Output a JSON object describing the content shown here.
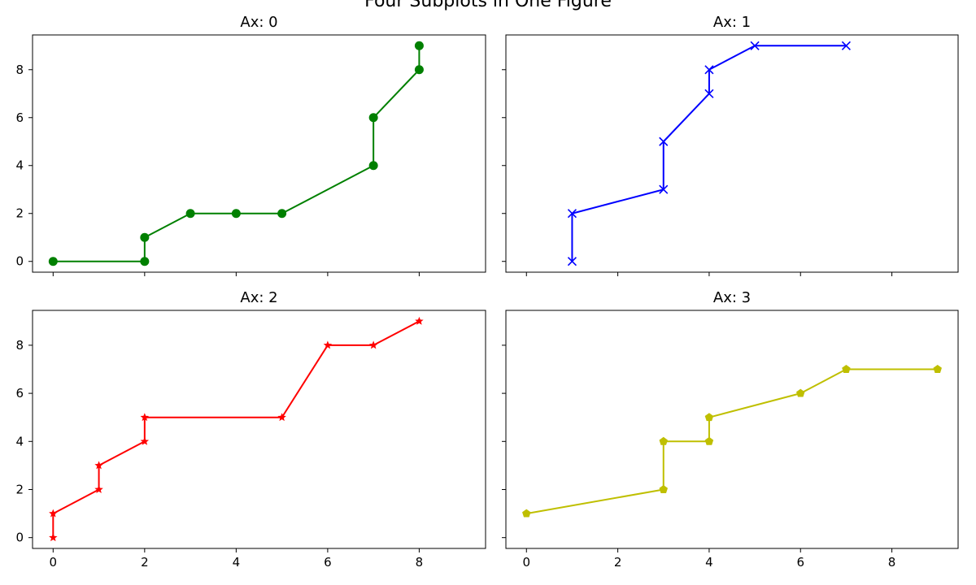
{
  "figure": {
    "suptitle": "Four Subplots in One Figure"
  },
  "chart_data": [
    {
      "type": "line",
      "title": "Ax: 0",
      "xlabel": "",
      "ylabel": "",
      "color": "#008000",
      "marker": "circle",
      "xlim": [
        -0.45,
        9.45
      ],
      "ylim": [
        -0.45,
        9.45
      ],
      "xticks": [
        0,
        2,
        4,
        6,
        8
      ],
      "yticks": [
        0,
        2,
        4,
        6,
        8
      ],
      "show_xtick_labels": false,
      "show_ytick_labels": true,
      "grid": false,
      "x": [
        0,
        2,
        2,
        3,
        4,
        5,
        7,
        7,
        8,
        8
      ],
      "y": [
        0,
        0,
        1,
        2,
        2,
        2,
        4,
        6,
        8,
        9
      ]
    },
    {
      "type": "line",
      "title": "Ax: 1",
      "xlabel": "",
      "ylabel": "",
      "color": "#0000ff",
      "marker": "x",
      "xlim": [
        -0.45,
        9.45
      ],
      "ylim": [
        -0.45,
        9.45
      ],
      "xticks": [
        0,
        2,
        4,
        6,
        8
      ],
      "yticks": [
        0,
        2,
        4,
        6,
        8
      ],
      "show_xtick_labels": false,
      "show_ytick_labels": false,
      "grid": false,
      "x": [
        1,
        1,
        3,
        3,
        4,
        4,
        5,
        7
      ],
      "y": [
        0,
        2,
        3,
        5,
        7,
        8,
        9,
        9
      ]
    },
    {
      "type": "line",
      "title": "Ax: 2",
      "xlabel": "",
      "ylabel": "",
      "color": "#ff0000",
      "marker": "star",
      "xlim": [
        -0.45,
        9.45
      ],
      "ylim": [
        -0.45,
        9.45
      ],
      "xticks": [
        0,
        2,
        4,
        6,
        8
      ],
      "yticks": [
        0,
        2,
        4,
        6,
        8
      ],
      "show_xtick_labels": true,
      "show_ytick_labels": true,
      "grid": false,
      "x": [
        0,
        0,
        1,
        1,
        2,
        2,
        5,
        6,
        7,
        8
      ],
      "y": [
        0,
        1,
        2,
        3,
        4,
        5,
        5,
        8,
        8,
        9
      ]
    },
    {
      "type": "line",
      "title": "Ax: 3",
      "xlabel": "",
      "ylabel": "",
      "color": "#bfbf00",
      "marker": "pentagon",
      "xlim": [
        -0.45,
        9.45
      ],
      "ylim": [
        -0.45,
        9.45
      ],
      "xticks": [
        0,
        2,
        4,
        6,
        8
      ],
      "yticks": [
        0,
        2,
        4,
        6,
        8
      ],
      "show_xtick_labels": true,
      "show_ytick_labels": false,
      "grid": false,
      "x": [
        0,
        3,
        3,
        4,
        4,
        6,
        7,
        9
      ],
      "y": [
        1,
        2,
        4,
        4,
        5,
        6,
        7,
        7
      ]
    }
  ]
}
